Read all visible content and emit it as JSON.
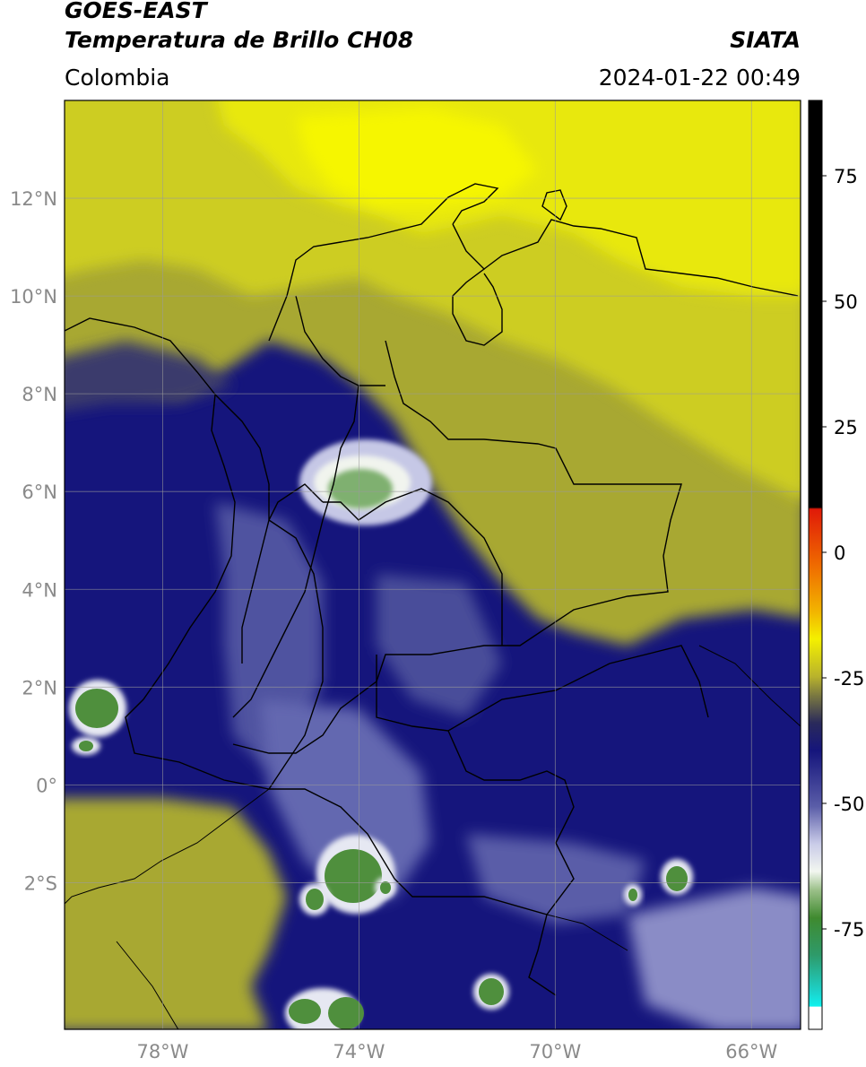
{
  "header": {
    "satellite": "GOES-EAST",
    "product": "Temperatura de Brillo CH08",
    "region": "Colombia",
    "agency": "SIATA",
    "timestamp": "2024-01-22 00:49"
  },
  "map": {
    "lon_range": [
      -80,
      -65
    ],
    "lat_range": [
      -5,
      14
    ],
    "lat_ticks": [
      {
        "value": 12,
        "label": "12°N"
      },
      {
        "value": 10,
        "label": "10°N"
      },
      {
        "value": 8,
        "label": "8°N"
      },
      {
        "value": 6,
        "label": "6°N"
      },
      {
        "value": 4,
        "label": "4°N"
      },
      {
        "value": 2,
        "label": "2°N"
      },
      {
        "value": 0,
        "label": "0°"
      },
      {
        "value": -2,
        "label": "2°S"
      }
    ],
    "lon_ticks": [
      {
        "value": -78,
        "label": "78°W"
      },
      {
        "value": -74,
        "label": "74°W"
      },
      {
        "value": -70,
        "label": "70°W"
      },
      {
        "value": -66,
        "label": "66°W"
      }
    ],
    "grid": true,
    "colors": {
      "warm_yellow": "#e6e60a",
      "olive": "#a8a833",
      "dark_blue": "#15157c",
      "light_lavender": "#c6c8e6",
      "deep_green": "#4f8f3d"
    }
  },
  "colorbar": {
    "range": [
      -95,
      90
    ],
    "ticks": [
      {
        "value": 75,
        "label": "75"
      },
      {
        "value": 50,
        "label": "50"
      },
      {
        "value": 25,
        "label": "25"
      },
      {
        "value": 0,
        "label": "0"
      },
      {
        "value": -25,
        "label": "-25"
      },
      {
        "value": -50,
        "label": "-50"
      },
      {
        "value": -75,
        "label": "-75"
      }
    ]
  }
}
